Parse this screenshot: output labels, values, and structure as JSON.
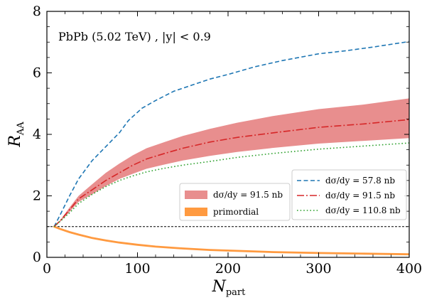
{
  "chart_data": {
    "type": "line",
    "annotation": "PbPb (5.02 TeV) , |y| < 0.9",
    "xlabel": "N",
    "xlabel_sub": "part",
    "ylabel": "R",
    "ylabel_sub": "AA",
    "xlim": [
      0,
      400
    ],
    "ylim": [
      0,
      8
    ],
    "xticks": [
      0,
      100,
      200,
      300,
      400
    ],
    "yticks": [
      0,
      2,
      4,
      6,
      8
    ],
    "reference_line": 1,
    "colors": {
      "blue": "#1f77b4",
      "red": "#d62728",
      "green": "#2ca02c",
      "band": "#e88e8e",
      "orange": "#ff9a40"
    },
    "series": [
      {
        "name": "dσ/dy = 57.8 nb",
        "style": "dashed",
        "color": "#1f77b4",
        "x": [
          8,
          15,
          25,
          35,
          50,
          65,
          80,
          90,
          105,
          120,
          140,
          160,
          180,
          200,
          230,
          260,
          300,
          330,
          360,
          400
        ],
        "y": [
          1.0,
          1.4,
          2.0,
          2.55,
          3.15,
          3.6,
          4.05,
          4.45,
          4.85,
          5.1,
          5.4,
          5.6,
          5.8,
          5.95,
          6.2,
          6.4,
          6.62,
          6.72,
          6.84,
          7.02
        ]
      },
      {
        "name": "dσ/dy = 91.5 nb",
        "style": "dashdot",
        "color": "#d62728",
        "x": [
          8,
          15,
          25,
          35,
          50,
          65,
          80,
          95,
          110,
          130,
          150,
          180,
          210,
          250,
          300,
          350,
          400
        ],
        "y": [
          1.0,
          1.2,
          1.55,
          1.9,
          2.2,
          2.5,
          2.75,
          3.0,
          3.2,
          3.38,
          3.55,
          3.75,
          3.9,
          4.05,
          4.23,
          4.34,
          4.48
        ]
      },
      {
        "name": "dσ/dy = 110.8 nb",
        "style": "dotted",
        "color": "#2ca02c",
        "x": [
          8,
          15,
          25,
          35,
          50,
          65,
          80,
          95,
          110,
          130,
          150,
          180,
          210,
          250,
          300,
          350,
          400
        ],
        "y": [
          1.0,
          1.18,
          1.45,
          1.75,
          2.05,
          2.3,
          2.5,
          2.65,
          2.78,
          2.9,
          3.0,
          3.12,
          3.25,
          3.38,
          3.52,
          3.62,
          3.72
        ]
      }
    ],
    "band": {
      "name": "dσ/dy = 91.5 nb",
      "color": "#e88e8e",
      "x": [
        8,
        15,
        25,
        35,
        50,
        65,
        80,
        95,
        110,
        130,
        150,
        180,
        210,
        250,
        300,
        350,
        400
      ],
      "upper": [
        1.0,
        1.22,
        1.62,
        2.0,
        2.38,
        2.75,
        3.05,
        3.32,
        3.55,
        3.75,
        3.95,
        4.18,
        4.38,
        4.6,
        4.82,
        4.97,
        5.17
      ],
      "lower": [
        1.0,
        1.16,
        1.48,
        1.8,
        2.05,
        2.32,
        2.55,
        2.72,
        2.88,
        3.02,
        3.15,
        3.3,
        3.43,
        3.56,
        3.7,
        3.79,
        3.88
      ]
    },
    "primordial": {
      "name": "primordial",
      "color": "#ff9a40",
      "x": [
        8,
        15,
        25,
        35,
        50,
        65,
        80,
        100,
        120,
        150,
        180,
        210,
        250,
        300,
        350,
        400
      ],
      "y": [
        1.0,
        0.92,
        0.82,
        0.74,
        0.63,
        0.55,
        0.48,
        0.41,
        0.35,
        0.29,
        0.24,
        0.21,
        0.17,
        0.14,
        0.12,
        0.1
      ]
    },
    "legend_left": {
      "placement": "lower-center",
      "entries": [
        {
          "label": "dσ/dy = 91.5 nb",
          "kind": "band",
          "color": "#e88e8e"
        },
        {
          "label": "primordial",
          "kind": "band",
          "color": "#ff9a40"
        }
      ]
    },
    "legend_right": {
      "placement": "center-right",
      "entries": [
        {
          "label": "dσ/dy = 57.8 nb",
          "kind": "dashed",
          "color": "#1f77b4"
        },
        {
          "label": "dσ/dy = 91.5 nb",
          "kind": "dashdot",
          "color": "#d62728"
        },
        {
          "label": "dσ/dy = 110.8 nb",
          "kind": "dotted",
          "color": "#2ca02c"
        }
      ]
    }
  }
}
